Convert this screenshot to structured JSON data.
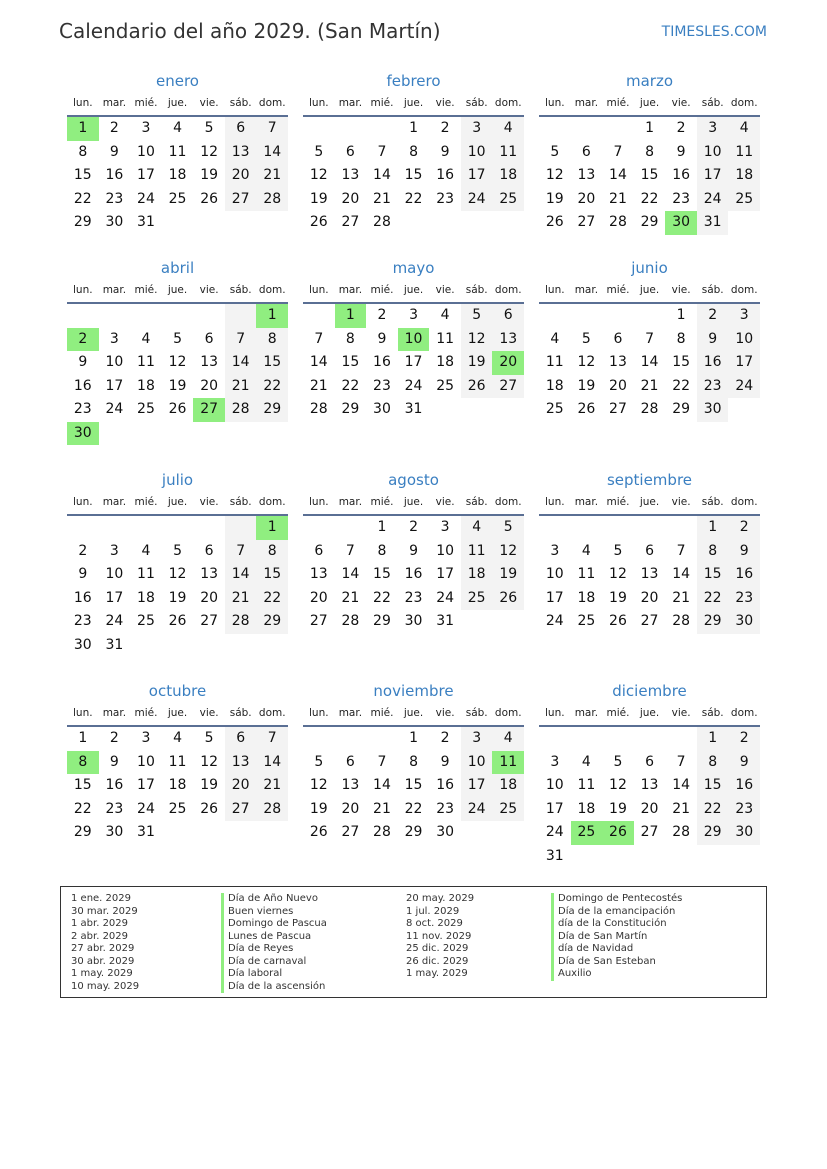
{
  "title": "Calendario del año 2029. (San Martín)",
  "brand": "TIMESLES.COM",
  "colors": {
    "accent": "#3a7fc1",
    "holiday": "#90ee80",
    "weekend": "#f3f3f3"
  },
  "weekdays": [
    "lun.",
    "mar.",
    "mié.",
    "jue.",
    "vie.",
    "sáb.",
    "dom."
  ],
  "months": [
    {
      "name": "enero",
      "weeks": [
        [
          1,
          2,
          3,
          4,
          5,
          6,
          7
        ],
        [
          8,
          9,
          10,
          11,
          12,
          13,
          14
        ],
        [
          15,
          16,
          17,
          18,
          19,
          20,
          21
        ],
        [
          22,
          23,
          24,
          25,
          26,
          27,
          28
        ],
        [
          29,
          30,
          31,
          0,
          0,
          0,
          0
        ]
      ],
      "holidays": [
        1
      ]
    },
    {
      "name": "febrero",
      "weeks": [
        [
          0,
          0,
          0,
          1,
          2,
          3,
          4
        ],
        [
          5,
          6,
          7,
          8,
          9,
          10,
          11
        ],
        [
          12,
          13,
          14,
          15,
          16,
          17,
          18
        ],
        [
          19,
          20,
          21,
          22,
          23,
          24,
          25
        ],
        [
          26,
          27,
          28,
          0,
          0,
          0,
          0
        ]
      ],
      "holidays": []
    },
    {
      "name": "marzo",
      "weeks": [
        [
          0,
          0,
          0,
          1,
          2,
          3,
          4
        ],
        [
          5,
          6,
          7,
          8,
          9,
          10,
          11
        ],
        [
          12,
          13,
          14,
          15,
          16,
          17,
          18
        ],
        [
          19,
          20,
          21,
          22,
          23,
          24,
          25
        ],
        [
          26,
          27,
          28,
          29,
          30,
          31,
          0
        ]
      ],
      "holidays": [
        30
      ]
    },
    {
      "name": "abril",
      "weeks": [
        [
          0,
          0,
          0,
          0,
          0,
          0,
          1
        ],
        [
          2,
          3,
          4,
          5,
          6,
          7,
          8
        ],
        [
          9,
          10,
          11,
          12,
          13,
          14,
          15
        ],
        [
          16,
          17,
          18,
          19,
          20,
          21,
          22
        ],
        [
          23,
          24,
          25,
          26,
          27,
          28,
          29
        ],
        [
          30,
          0,
          0,
          0,
          0,
          0,
          0
        ]
      ],
      "holidays": [
        1,
        2,
        27,
        30
      ]
    },
    {
      "name": "mayo",
      "weeks": [
        [
          0,
          1,
          2,
          3,
          4,
          5,
          6
        ],
        [
          7,
          8,
          9,
          10,
          11,
          12,
          13
        ],
        [
          14,
          15,
          16,
          17,
          18,
          19,
          20
        ],
        [
          21,
          22,
          23,
          24,
          25,
          26,
          27
        ],
        [
          28,
          29,
          30,
          31,
          0,
          0,
          0
        ]
      ],
      "holidays": [
        1,
        10,
        20
      ]
    },
    {
      "name": "junio",
      "weeks": [
        [
          0,
          0,
          0,
          0,
          1,
          2,
          3
        ],
        [
          4,
          5,
          6,
          7,
          8,
          9,
          10
        ],
        [
          11,
          12,
          13,
          14,
          15,
          16,
          17
        ],
        [
          18,
          19,
          20,
          21,
          22,
          23,
          24
        ],
        [
          25,
          26,
          27,
          28,
          29,
          30,
          0
        ]
      ],
      "holidays": []
    },
    {
      "name": "julio",
      "weeks": [
        [
          0,
          0,
          0,
          0,
          0,
          0,
          1
        ],
        [
          2,
          3,
          4,
          5,
          6,
          7,
          8
        ],
        [
          9,
          10,
          11,
          12,
          13,
          14,
          15
        ],
        [
          16,
          17,
          18,
          19,
          20,
          21,
          22
        ],
        [
          23,
          24,
          25,
          26,
          27,
          28,
          29
        ],
        [
          30,
          31,
          0,
          0,
          0,
          0,
          0
        ]
      ],
      "holidays": [
        1
      ]
    },
    {
      "name": "agosto",
      "weeks": [
        [
          0,
          0,
          1,
          2,
          3,
          4,
          5
        ],
        [
          6,
          7,
          8,
          9,
          10,
          11,
          12
        ],
        [
          13,
          14,
          15,
          16,
          17,
          18,
          19
        ],
        [
          20,
          21,
          22,
          23,
          24,
          25,
          26
        ],
        [
          27,
          28,
          29,
          30,
          31,
          0,
          0
        ]
      ],
      "holidays": []
    },
    {
      "name": "septiembre",
      "weeks": [
        [
          0,
          0,
          0,
          0,
          0,
          1,
          2
        ],
        [
          3,
          4,
          5,
          6,
          7,
          8,
          9
        ],
        [
          10,
          11,
          12,
          13,
          14,
          15,
          16
        ],
        [
          17,
          18,
          19,
          20,
          21,
          22,
          23
        ],
        [
          24,
          25,
          26,
          27,
          28,
          29,
          30
        ]
      ],
      "holidays": []
    },
    {
      "name": "octubre",
      "weeks": [
        [
          1,
          2,
          3,
          4,
          5,
          6,
          7
        ],
        [
          8,
          9,
          10,
          11,
          12,
          13,
          14
        ],
        [
          15,
          16,
          17,
          18,
          19,
          20,
          21
        ],
        [
          22,
          23,
          24,
          25,
          26,
          27,
          28
        ],
        [
          29,
          30,
          31,
          0,
          0,
          0,
          0
        ]
      ],
      "holidays": [
        8
      ]
    },
    {
      "name": "noviembre",
      "weeks": [
        [
          0,
          0,
          0,
          1,
          2,
          3,
          4
        ],
        [
          5,
          6,
          7,
          8,
          9,
          10,
          11
        ],
        [
          12,
          13,
          14,
          15,
          16,
          17,
          18
        ],
        [
          19,
          20,
          21,
          22,
          23,
          24,
          25
        ],
        [
          26,
          27,
          28,
          29,
          30,
          0,
          0
        ]
      ],
      "holidays": [
        11
      ]
    },
    {
      "name": "diciembre",
      "weeks": [
        [
          0,
          0,
          0,
          0,
          0,
          1,
          2
        ],
        [
          3,
          4,
          5,
          6,
          7,
          8,
          9
        ],
        [
          10,
          11,
          12,
          13,
          14,
          15,
          16
        ],
        [
          17,
          18,
          19,
          20,
          21,
          22,
          23
        ],
        [
          24,
          25,
          26,
          27,
          28,
          29,
          30
        ],
        [
          31,
          0,
          0,
          0,
          0,
          0,
          0
        ]
      ],
      "holidays": [
        25,
        26
      ]
    }
  ],
  "legend": [
    {
      "date": "1 ene. 2029",
      "name": "Día de Año Nuevo"
    },
    {
      "date": "30 mar. 2029",
      "name": "Buen viernes"
    },
    {
      "date": "1 abr. 2029",
      "name": "Domingo de Pascua"
    },
    {
      "date": "2 abr. 2029",
      "name": "Lunes de Pascua"
    },
    {
      "date": "27 abr. 2029",
      "name": "Día de Reyes"
    },
    {
      "date": "30 abr. 2029",
      "name": "Día de carnaval"
    },
    {
      "date": "1 may. 2029",
      "name": "Día laboral"
    },
    {
      "date": "10 may. 2029",
      "name": "Día de la ascensión"
    },
    {
      "date": "20 may. 2029",
      "name": "Domingo de Pentecostés"
    },
    {
      "date": "1 jul. 2029",
      "name": "Día de la emancipación"
    },
    {
      "date": "8 oct. 2029",
      "name": "día de la Constitución"
    },
    {
      "date": "11 nov. 2029",
      "name": "Día de San Martín"
    },
    {
      "date": "25 dic. 2029",
      "name": "día de Navidad"
    },
    {
      "date": "26 dic. 2029",
      "name": "Día de San Esteban"
    },
    {
      "date": "1 may. 2029",
      "name": "Auxilio"
    }
  ]
}
